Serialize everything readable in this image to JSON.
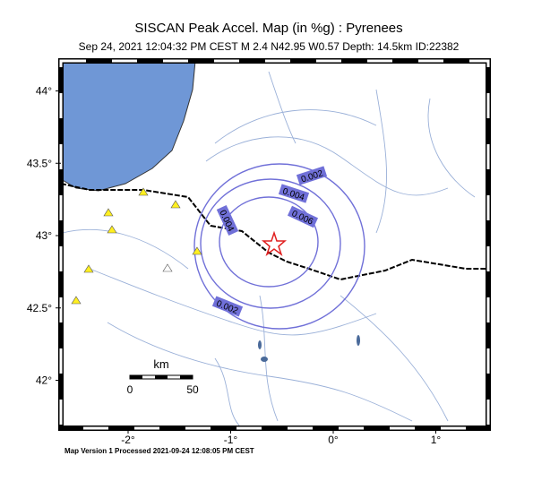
{
  "header": {
    "title": "SISCAN Peak Accel. Map (in %g) : Pyrenees",
    "subtitle": "Sep 24, 2021 12:04:32 PM CEST   M 2.4   N42.95 W0.57   Depth: 14.5km   ID:22382"
  },
  "axes": {
    "lon_ticks": [
      {
        "value": -2,
        "label": "-2°"
      },
      {
        "value": -1,
        "label": "-1°"
      },
      {
        "value": 0,
        "label": "0°"
      },
      {
        "value": 1,
        "label": "1°"
      }
    ],
    "lat_ticks": [
      {
        "value": 44,
        "label": "44°"
      },
      {
        "value": 43.5,
        "label": "43.5°"
      },
      {
        "value": 43,
        "label": "43°"
      },
      {
        "value": 42.5,
        "label": "42.5°"
      },
      {
        "value": 42,
        "label": "42°"
      }
    ]
  },
  "contour_labels": [
    "0.002",
    "0.004",
    "0.006",
    "0.004",
    "0.002"
  ],
  "scale_bar": {
    "unit": "km",
    "start": "0",
    "end": "50"
  },
  "footer": "Map Version 1 Processed 2021-09-24 12:08:05 PM CEST"
}
